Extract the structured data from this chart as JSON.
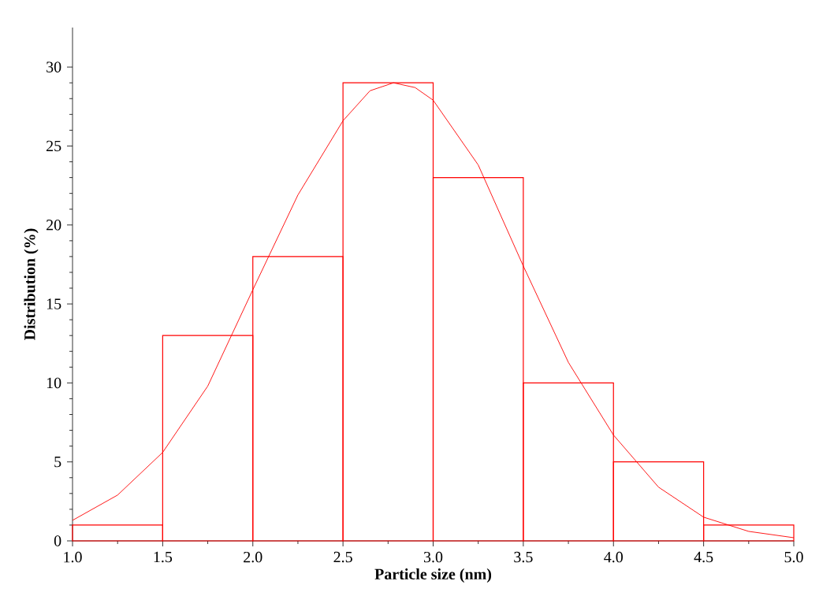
{
  "chart_data": {
    "type": "histogram",
    "xlabel": "Particle size (nm)",
    "ylabel": "Distribution (%)",
    "bins": [
      1.0,
      1.5,
      2.0,
      2.5,
      3.0,
      3.5,
      4.0,
      4.5,
      5.0
    ],
    "values": [
      1,
      13,
      18,
      29,
      23,
      10,
      5,
      1
    ],
    "color": "#ff0000",
    "series": [
      {
        "type": "line",
        "color": "#ff0000",
        "x": [
          1.0,
          1.25,
          1.5,
          1.75,
          2.0,
          2.25,
          2.5,
          2.65,
          2.78,
          2.9,
          3.0,
          3.25,
          3.5,
          3.75,
          4.0,
          4.25,
          4.5,
          4.75,
          5.0
        ],
        "values": [
          1.3,
          2.9,
          5.6,
          9.8,
          15.9,
          21.9,
          26.6,
          28.5,
          29.0,
          28.7,
          27.9,
          23.8,
          17.4,
          11.3,
          6.7,
          3.4,
          1.5,
          0.6,
          0.2
        ]
      }
    ],
    "xlim": [
      1.0,
      5.0
    ],
    "xticks": [
      {
        "value": 1.0,
        "label": "1.0"
      },
      {
        "value": 1.5,
        "label": "1.5"
      },
      {
        "value": 2.0,
        "label": "2.0"
      },
      {
        "value": 2.5,
        "label": "2.5"
      },
      {
        "value": 3.0,
        "label": "3.0"
      },
      {
        "value": 3.5,
        "label": "3.5"
      },
      {
        "value": 4.0,
        "label": "4.0"
      },
      {
        "value": 4.5,
        "label": "4.5"
      },
      {
        "value": 5.0,
        "label": "5.0"
      }
    ],
    "ylim": [
      0,
      32.5
    ],
    "yticks": [
      0,
      5,
      10,
      15,
      20,
      25,
      30
    ],
    "grid": false,
    "marker": "none",
    "line_style": "solid"
  }
}
